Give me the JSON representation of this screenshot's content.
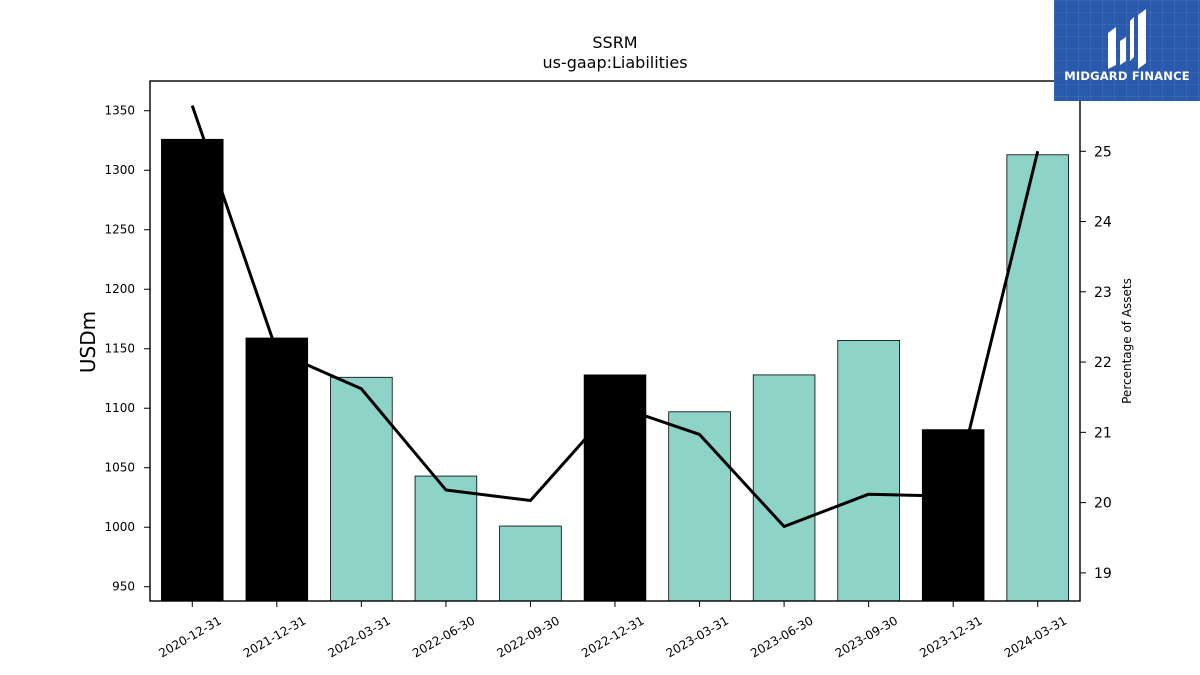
{
  "logo": {
    "text": "MIDGARD FINANCE",
    "background": "#2a5aad"
  },
  "chart_data": {
    "type": "bar",
    "title": "SSRM",
    "subtitle": "us-gaap:Liabilities",
    "ylabel": "USDm",
    "y2label": "Percentage of Assets",
    "categories": [
      "2020-12-31",
      "2021-12-31",
      "2022-03-31",
      "2022-06-30",
      "2022-09-30",
      "2022-12-31",
      "2023-03-31",
      "2023-06-30",
      "2023-09-30",
      "2023-12-31",
      "2024-03-31"
    ],
    "values": [
      1326,
      1159,
      1126,
      1043,
      1001,
      1128,
      1097,
      1128,
      1157,
      1082,
      1313
    ],
    "bar_colors": [
      "#000000",
      "#000000",
      "#8dd3c7",
      "#8dd3c7",
      "#8dd3c7",
      "#000000",
      "#8dd3c7",
      "#8dd3c7",
      "#8dd3c7",
      "#000000",
      "#8dd3c7"
    ],
    "line_series": {
      "values": [
        25.65,
        22.15,
        21.62,
        20.18,
        20.03,
        21.38,
        20.97,
        19.66,
        20.12,
        20.09,
        25.0
      ],
      "color": "#000000"
    },
    "ylim": [
      938,
      1375
    ],
    "y_ticks": [
      950,
      1000,
      1050,
      1100,
      1150,
      1200,
      1250,
      1300,
      1350
    ],
    "y2lim": [
      18.6,
      26.0
    ],
    "y2_ticks": [
      19,
      20,
      21,
      22,
      23,
      24,
      25
    ],
    "grid": false,
    "legend": "none"
  }
}
